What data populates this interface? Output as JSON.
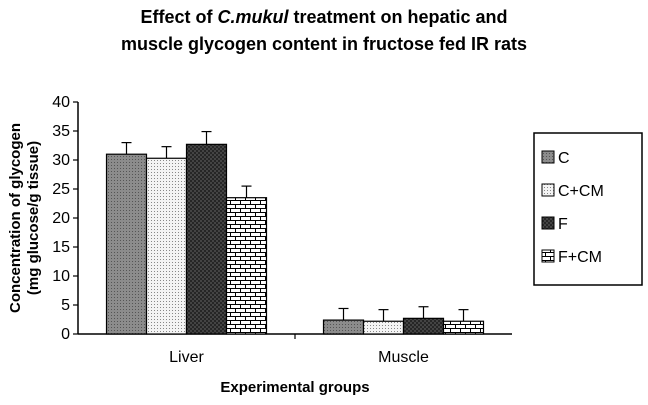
{
  "title": {
    "line1_prefix": "Effect of ",
    "line1_italic": "C.mukul",
    "line1_suffix": " treatment on hepatic and",
    "line2": "muscle glycogen content in fructose fed IR rats"
  },
  "chart_data": {
    "type": "bar",
    "title": "Effect of C.mukul treatment on hepatic and muscle glycogen content in fructose fed IR rats",
    "categories": [
      "Liver",
      "Muscle"
    ],
    "series": [
      {
        "name": "C",
        "values": [
          31.0,
          2.4
        ],
        "errors": [
          2.0,
          2.0
        ],
        "pattern": "dots-gray"
      },
      {
        "name": "C+CM",
        "values": [
          30.3,
          2.2
        ],
        "errors": [
          2.0,
          2.0
        ],
        "pattern": "dots-white"
      },
      {
        "name": "F",
        "values": [
          32.7,
          2.7
        ],
        "errors": [
          2.2,
          2.0
        ],
        "pattern": "checker-dark"
      },
      {
        "name": "F+CM",
        "values": [
          23.5,
          2.2
        ],
        "errors": [
          2.0,
          2.0
        ],
        "pattern": "bricks"
      }
    ],
    "xlabel": "Experimental groups",
    "ylabel_line1": "Concentration of glycogen",
    "ylabel_line2": "(mg glucose/g tissue)",
    "ylim": [
      0,
      40
    ],
    "yticks": [
      0,
      5,
      10,
      15,
      20,
      25,
      30,
      35,
      40
    ],
    "grid": false,
    "legend_position": "right"
  }
}
